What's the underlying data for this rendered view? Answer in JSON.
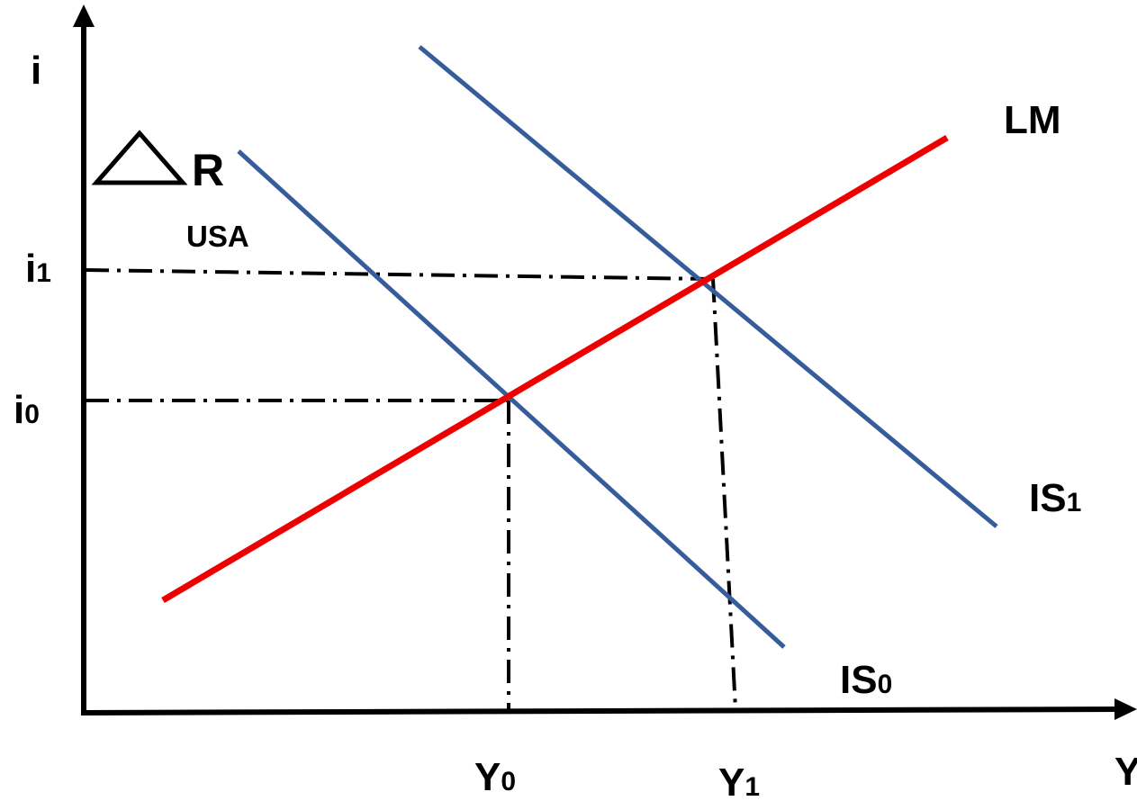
{
  "diagram": {
    "y_axis_label": "i",
    "x_axis_label": "Y",
    "curves": {
      "lm": "LM",
      "is0": {
        "base": "IS",
        "sub": "0"
      },
      "is1": {
        "base": "IS",
        "sub": "1"
      }
    },
    "i_levels": {
      "i0": {
        "base": "i",
        "sub": "0"
      },
      "i1": {
        "base": "i",
        "sub": "1"
      }
    },
    "y_levels": {
      "y0": {
        "base": "Y",
        "sub": "0"
      },
      "y1": {
        "base": "Y",
        "sub": "1"
      }
    },
    "shock": {
      "symbol": "R",
      "region": "USA"
    },
    "colors": {
      "lm": "#ee0000",
      "is": "#365c9b",
      "axis": "#000000",
      "guide": "#000000"
    }
  }
}
